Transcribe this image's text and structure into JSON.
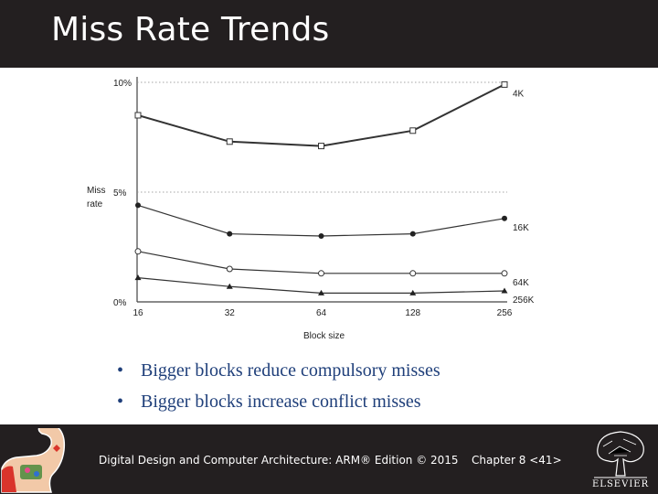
{
  "slide": {
    "title": "Miss Rate Trends"
  },
  "chart_data": {
    "type": "line",
    "title": "",
    "xlabel": "Block size",
    "ylabel": "Miss rate",
    "ylabel_lines": [
      "Miss",
      "rate"
    ],
    "x": [
      16,
      32,
      64,
      128,
      256
    ],
    "x_ticks": [
      "16",
      "32",
      "64",
      "128",
      "256"
    ],
    "y_ticks": [
      {
        "value": 0,
        "label": "0%"
      },
      {
        "value": 5,
        "label": "5%"
      },
      {
        "value": 10,
        "label": "10%"
      }
    ],
    "ylim": [
      0,
      10
    ],
    "grid": "dotted horizontal at 5% and 10%",
    "series": [
      {
        "name": "4K",
        "marker": "square",
        "values": [
          8.5,
          7.3,
          7.1,
          7.8,
          9.9
        ]
      },
      {
        "name": "16K",
        "marker": "filled-circle",
        "values": [
          4.4,
          3.1,
          3.0,
          3.1,
          3.8
        ]
      },
      {
        "name": "64K",
        "marker": "open-circle",
        "values": [
          2.3,
          1.5,
          1.3,
          1.3,
          1.3
        ]
      },
      {
        "name": "256K",
        "marker": "triangle",
        "values": [
          1.1,
          0.7,
          0.4,
          0.4,
          0.5
        ]
      }
    ]
  },
  "bullets": [
    "Bigger blocks reduce compulsory misses",
    "Bigger blocks increase conflict misses"
  ],
  "footer": {
    "book": "Digital Design and Computer Architecture: ARM® Edition © 2015",
    "chapter": "Chapter 8 <41>",
    "publisher": "ELSEVIER"
  }
}
